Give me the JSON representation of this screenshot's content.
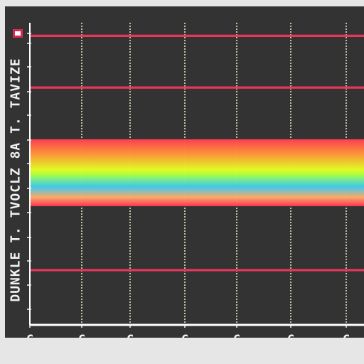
{
  "chart_data": {
    "type": "heatmap",
    "title": "",
    "xlabel": "",
    "ylabel": "DUNKLE T. TVOCLZ 8A T. TAVIZE",
    "x_tick_labels": [
      "C",
      "C",
      "C",
      "C",
      "C",
      "C",
      "C"
    ],
    "ylim": [
      0,
      10
    ],
    "grid": true,
    "horizontal_lines": [
      {
        "value": 9.5,
        "color": "#e93659"
      },
      {
        "value": 7.8,
        "color": "#e93659"
      },
      {
        "value": 1.8,
        "color": "#e93659"
      }
    ],
    "band": {
      "from": 3.9,
      "to": 6.1,
      "stops": [
        {
          "value": 6.1,
          "color": "#ff3f52"
        },
        {
          "value": 5.6,
          "color": "#ff9a38"
        },
        {
          "value": 5.1,
          "color": "#e3ff24"
        },
        {
          "value": 4.85,
          "color": "#95ff4f"
        },
        {
          "value": 4.55,
          "color": "#37c7e8"
        },
        {
          "value": 4.2,
          "color": "#ffad6a"
        },
        {
          "value": 3.9,
          "color": "#ff3451"
        }
      ]
    },
    "colors": {
      "background": "#333333",
      "grid": "#d9d7b8",
      "axis": "#ffffff",
      "tick_label": "#f2f2f2"
    }
  }
}
